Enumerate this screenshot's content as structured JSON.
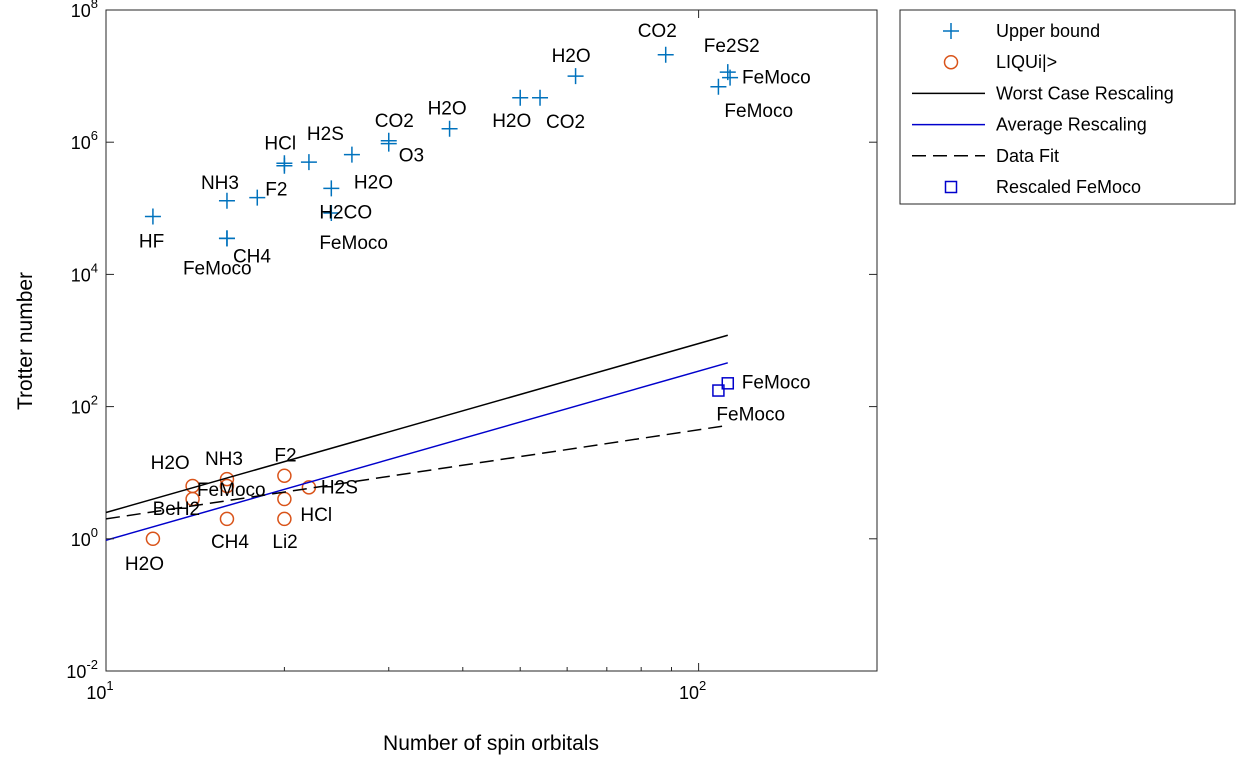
{
  "chart_data": {
    "type": "scatter",
    "title": "",
    "xlabel": "Number of spin orbitals",
    "ylabel": "Trotter number",
    "xscale": "log",
    "yscale": "log",
    "xlim": [
      10,
      200
    ],
    "ylim": [
      0.01,
      100000000
    ],
    "grid": false,
    "legend_position": "outside-top-right",
    "x_ticks": [
      {
        "value": 10,
        "base": "10",
        "exp": "1"
      },
      {
        "value": 100,
        "base": "10",
        "exp": "2"
      }
    ],
    "y_ticks": [
      {
        "value": 0.01,
        "base": "10",
        "exp": "-2"
      },
      {
        "value": 1,
        "base": "10",
        "exp": "0"
      },
      {
        "value": 100,
        "base": "10",
        "exp": "2"
      },
      {
        "value": 10000,
        "base": "10",
        "exp": "4"
      },
      {
        "value": 1000000,
        "base": "10",
        "exp": "6"
      },
      {
        "value": 100000000,
        "base": "10",
        "exp": "8"
      }
    ],
    "series": [
      {
        "name": "Upper bound",
        "kind": "scatter",
        "marker": "plus",
        "color": "#0072BD",
        "points": [
          {
            "x": 12,
            "y": 75000,
            "label": "HF"
          },
          {
            "x": 16,
            "y": 130000,
            "label": "NH3"
          },
          {
            "x": 18,
            "y": 145000,
            "label": "F2"
          },
          {
            "x": 16,
            "y": 35000,
            "label": "CH4"
          },
          {
            "x": 16,
            "y": 35000,
            "label": "FeMoco"
          },
          {
            "x": 20,
            "y": 480000,
            "label": "HCl"
          },
          {
            "x": 20,
            "y": 440000,
            "label": ""
          },
          {
            "x": 22,
            "y": 500000,
            "label": "H2S"
          },
          {
            "x": 24,
            "y": 200000,
            "label": "H2CO"
          },
          {
            "x": 24,
            "y": 85000,
            "label": "FeMoco"
          },
          {
            "x": 26,
            "y": 650000,
            "label": "H2O"
          },
          {
            "x": 30,
            "y": 1050000,
            "label": "CO2"
          },
          {
            "x": 30,
            "y": 950000,
            "label": "O3"
          },
          {
            "x": 38,
            "y": 1600000,
            "label": "H2O"
          },
          {
            "x": 50,
            "y": 4700000,
            "label": "H2O"
          },
          {
            "x": 54,
            "y": 4700000,
            "label": "CO2"
          },
          {
            "x": 62,
            "y": 10000000,
            "label": "H2O"
          },
          {
            "x": 88,
            "y": 21000000,
            "label": "CO2"
          },
          {
            "x": 112,
            "y": 11500000,
            "label": "Fe2S2"
          },
          {
            "x": 113,
            "y": 9500000,
            "label": "FeMoco"
          },
          {
            "x": 108,
            "y": 6900000,
            "label": "FeMoco"
          }
        ]
      },
      {
        "name": "LIQUi|>",
        "kind": "scatter",
        "marker": "circle",
        "color": "#D95319",
        "points": [
          {
            "x": 12,
            "y": 1,
            "label": "H2O"
          },
          {
            "x": 14,
            "y": 6.3,
            "label": "H2O"
          },
          {
            "x": 14,
            "y": 4,
            "label": "BeH2"
          },
          {
            "x": 16,
            "y": 8,
            "label": "NH3"
          },
          {
            "x": 16,
            "y": 6.3,
            "label": "FeMoco"
          },
          {
            "x": 16,
            "y": 2,
            "label": "CH4"
          },
          {
            "x": 20,
            "y": 9,
            "label": "F2"
          },
          {
            "x": 20,
            "y": 4,
            "label": "HCl"
          },
          {
            "x": 20,
            "y": 2,
            "label": "Li2"
          },
          {
            "x": 22,
            "y": 6,
            "label": "H2S"
          }
        ]
      },
      {
        "name": "Worst Case Rescaling",
        "kind": "line",
        "dash": "solid",
        "color": "#000000",
        "points": [
          {
            "x": 10,
            "y": 2.5
          },
          {
            "x": 112,
            "y": 1200
          }
        ]
      },
      {
        "name": "Average Rescaling",
        "kind": "line",
        "dash": "solid",
        "color": "#0000CC",
        "points": [
          {
            "x": 10,
            "y": 0.95
          },
          {
            "x": 112,
            "y": 460
          }
        ]
      },
      {
        "name": "Data Fit",
        "kind": "line",
        "dash": "dashed",
        "color": "#000000",
        "points": [
          {
            "x": 10,
            "y": 2.0
          },
          {
            "x": 112,
            "y": 52
          }
        ]
      },
      {
        "name": "Rescaled FeMoco",
        "kind": "scatter",
        "marker": "square",
        "color": "#0000CC",
        "points": [
          {
            "x": 112,
            "y": 225,
            "label": "FeMoco"
          },
          {
            "x": 108,
            "y": 175,
            "label": "FeMoco"
          }
        ]
      }
    ]
  }
}
